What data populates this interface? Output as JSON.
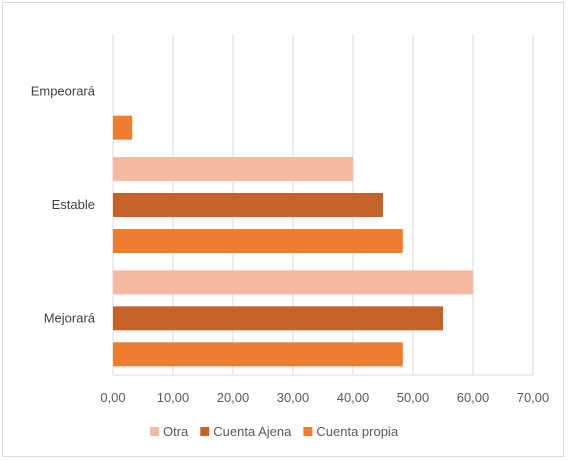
{
  "chart_data": {
    "type": "bar",
    "orientation": "horizontal",
    "title": "",
    "xlabel": "",
    "ylabel": "",
    "categories": [
      "Empeorará",
      "Estable",
      "Mejorará"
    ],
    "series": [
      {
        "name": "Otra",
        "color": "#f4b9a1",
        "values": [
          0,
          40,
          60
        ]
      },
      {
        "name": "Cuenta Ajena",
        "color": "#c5622a",
        "values": [
          0,
          45,
          55
        ]
      },
      {
        "name": "Cuenta propia",
        "color": "#ed7d31",
        "values": [
          3.2,
          48.3,
          48.3
        ]
      }
    ],
    "xlim": [
      0,
      70
    ],
    "xticks": [
      "0,00",
      "10,00",
      "20,00",
      "30,00",
      "40,00",
      "50,00",
      "60,00",
      "70,00"
    ],
    "grid": "vertical",
    "legend_position": "bottom"
  }
}
